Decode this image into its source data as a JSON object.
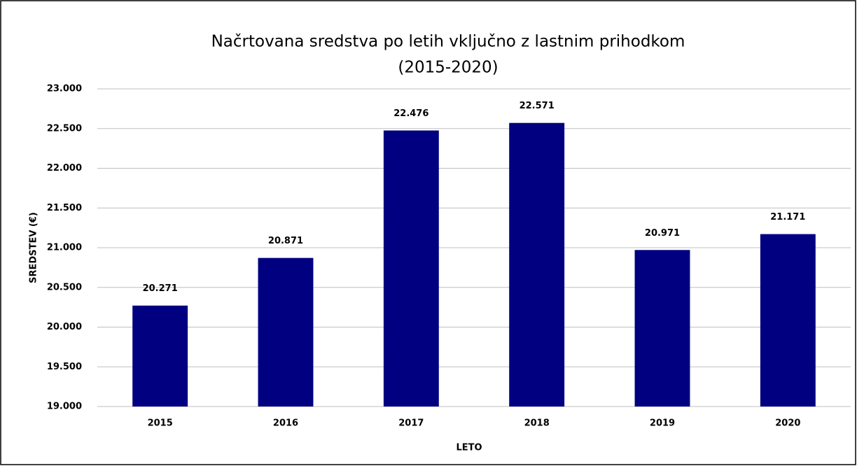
{
  "chart_data": {
    "type": "bar",
    "title": [
      "Načrtovana sredstva po letih vključno z lastnim prihodkom",
      "(2015-2020)"
    ],
    "x_label": "LETO",
    "y_label": "SREDSTEV (€)",
    "categories": [
      "2015",
      "2016",
      "2017",
      "2018",
      "2019",
      "2020"
    ],
    "values": [
      20271,
      20871,
      22476,
      22571,
      20971,
      21171
    ],
    "value_labels": [
      "20.271",
      "20.871",
      "22.476",
      "22.571",
      "20.971",
      "21.171"
    ],
    "color": "#000080",
    "ylim": [
      19000,
      23000
    ],
    "yticks": [
      {
        "value": 19000,
        "label": "19.000"
      },
      {
        "value": 19500,
        "label": "19.500"
      },
      {
        "value": 20000,
        "label": "20.000"
      },
      {
        "value": 20500,
        "label": "20.500"
      },
      {
        "value": 21000,
        "label": "21.000"
      },
      {
        "value": 21500,
        "label": "21.500"
      },
      {
        "value": 22000,
        "label": "22.000"
      },
      {
        "value": 22500,
        "label": "22.500"
      },
      {
        "value": 23000,
        "label": "23.000"
      }
    ],
    "grid": true
  }
}
